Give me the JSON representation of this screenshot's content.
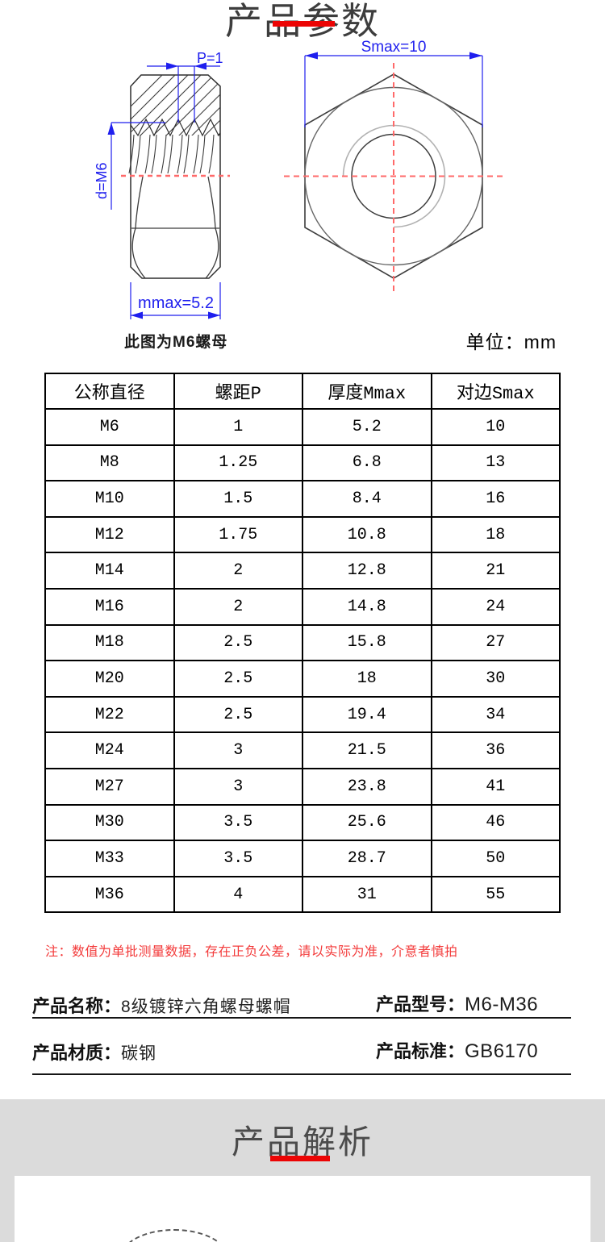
{
  "page": {
    "title": "产品参数",
    "unit_label": "单位：mm",
    "diagram_caption": "此图为M6螺母",
    "note": "注：数值为单批测量数据，存在正负公差，请以实际为准，介意者慎拍",
    "section2_title": "产品解析"
  },
  "diagram": {
    "side_view": {
      "dim_pitch": "P=1",
      "dim_diameter": "d=M6",
      "dim_thickness": "mmax=5.2"
    },
    "front_view": {
      "dim_width": "Smax=10"
    }
  },
  "table": {
    "headers": [
      "公称直径",
      "螺距P",
      "厚度Mmax",
      "对边Smax"
    ],
    "rows": [
      [
        "M6",
        "1",
        "5.2",
        "10"
      ],
      [
        "M8",
        "1.25",
        "6.8",
        "13"
      ],
      [
        "M10",
        "1.5",
        "8.4",
        "16"
      ],
      [
        "M12",
        "1.75",
        "10.8",
        "18"
      ],
      [
        "M14",
        "2",
        "12.8",
        "21"
      ],
      [
        "M16",
        "2",
        "14.8",
        "24"
      ],
      [
        "M18",
        "2.5",
        "15.8",
        "27"
      ],
      [
        "M20",
        "2.5",
        "18",
        "30"
      ],
      [
        "M22",
        "2.5",
        "19.4",
        "34"
      ],
      [
        "M24",
        "3",
        "21.5",
        "36"
      ],
      [
        "M27",
        "3",
        "23.8",
        "41"
      ],
      [
        "M30",
        "3.5",
        "25.6",
        "46"
      ],
      [
        "M33",
        "3.5",
        "28.7",
        "50"
      ],
      [
        "M36",
        "4",
        "31",
        "55"
      ]
    ]
  },
  "product_info": {
    "name_label": "产品名称：",
    "name_value": "8级镀锌六角螺母螺帽",
    "model_label": "产品型号：",
    "model_value": "M6-M36",
    "material_label": "产品材质：",
    "material_value": "碳钢",
    "standard_label": "产品标准：",
    "standard_value": "GB6170"
  },
  "colors": {
    "accent_red": "#ec0404",
    "note_red": "#f33b3b",
    "dimension_blue": "#1f1fee",
    "centerline_red": "#ff6a6a",
    "section_bg": "#dbdbdb"
  }
}
